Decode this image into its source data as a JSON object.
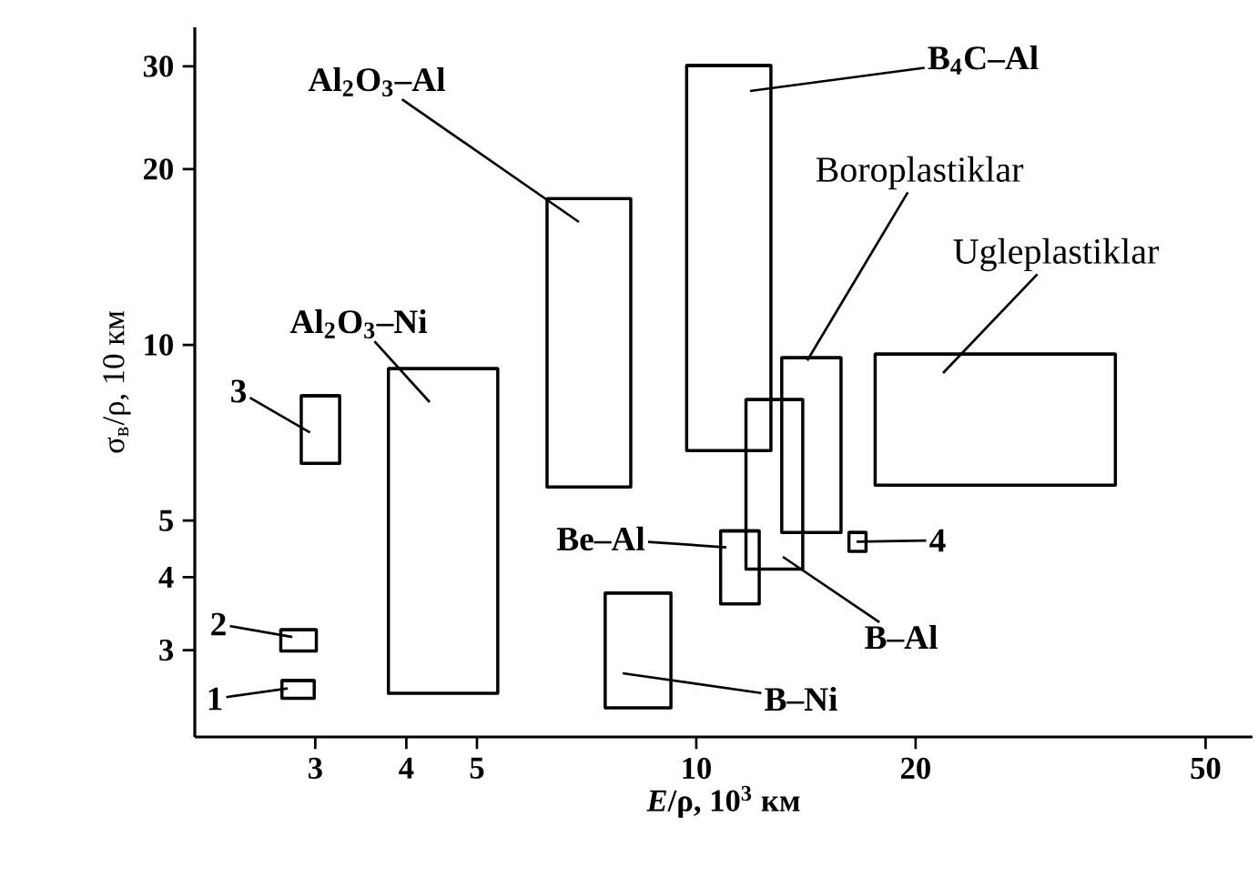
{
  "chart_data": {
    "type": "bar",
    "xlabel": "*E*/ρ, 10$^{3}$ км",
    "ylabel": "σ$_{в}$/ρ, 10 км",
    "x": [
      2.845,
      2.85,
      3.055,
      4.56,
      7.185,
      8.365,
      11.18,
      11.5,
      12.85,
      14.45,
      16.65,
      25.72
    ],
    "base": [
      2.48,
      2.99,
      6.27,
      2.53,
      5.71,
      2.39,
      6.59,
      3.6,
      4.13,
      4.77,
      4.43,
      5.75
    ],
    "values": [
      0.18,
      0.26,
      1.91,
      6.57,
      12.09,
      1.37,
      23.51,
      1.2,
      3.93,
      4.73,
      0.34,
      3.89
    ],
    "xerrors": [
      0.145,
      0.16,
      0.185,
      0.78,
      0.945,
      0.865,
      1.48,
      0.7,
      1.15,
      1.35,
      0.45,
      [
        17.6,
        37.6
      ]
    ],
    "color": "#000000",
    "log": "xy",
    "xlim": [
      2.05,
      58
    ],
    "ylim": [
      2.13,
      35
    ],
    "xticks": [
      3,
      4,
      5,
      10,
      20,
      50
    ],
    "yticks": [
      3,
      4,
      5,
      10,
      20,
      30
    ],
    "annotations": [
      {
        "text": "1",
        "x": 2.75,
        "y": 2.58
      },
      {
        "text": "2",
        "x": 2.79,
        "y": 3.16
      },
      {
        "text": "3",
        "x": 2.95,
        "y": 7.08
      },
      "Al$_{2}$O$_{3}$–Ni",
      "Al$_{2}$O$_{3}$–Al",
      "B$_{4}$C–Al",
      {
        "text": "Boroplastiklar",
        "x": 14.2,
        "y": 9.4
      },
      "Ugleplastiklar",
      {
        "text": "Be–Al",
        "x": 11.0,
        "y": 4.5
      },
      {
        "text": "4",
        "x": 16.6,
        "y": 4.6
      },
      "B–Al",
      "B–Ni"
    ]
  }
}
